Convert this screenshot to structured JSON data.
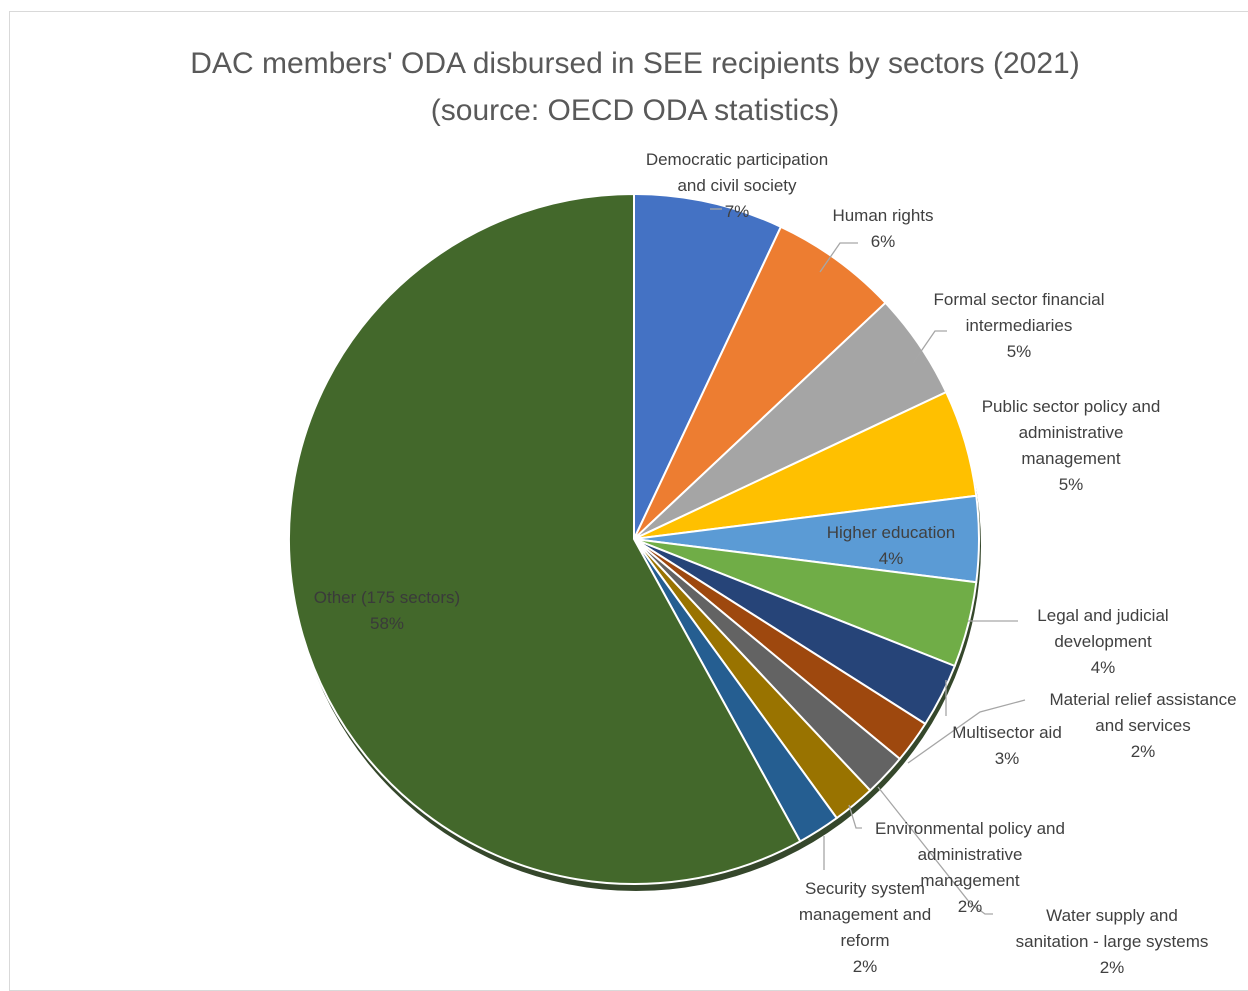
{
  "chart_data": {
    "type": "pie",
    "title": [
      "DAC members' ODA disbursed in SEE recipients by sectors (2021)",
      "(source: OECD ODA statistics)"
    ],
    "slices": [
      {
        "label": [
          "Democratic participation",
          "and civil society"
        ],
        "value": 7,
        "pct": "7%",
        "color": "#4472c4"
      },
      {
        "label": [
          "Human rights"
        ],
        "value": 6,
        "pct": "6%",
        "color": "#ed7d31"
      },
      {
        "label": [
          "Formal sector financial",
          "intermediaries"
        ],
        "value": 5,
        "pct": "5%",
        "color": "#a5a5a5"
      },
      {
        "label": [
          "Public sector policy and",
          "administrative",
          "management"
        ],
        "value": 5,
        "pct": "5%",
        "color": "#ffc000"
      },
      {
        "label": [
          "Higher education"
        ],
        "value": 4,
        "pct": "4%",
        "color": "#5b9bd5"
      },
      {
        "label": [
          "Legal and judicial",
          "development"
        ],
        "value": 4,
        "pct": "4%",
        "color": "#70ad47"
      },
      {
        "label": [
          "Multisector aid"
        ],
        "value": 3,
        "pct": "3%",
        "color": "#264478"
      },
      {
        "label": [
          "Material relief assistance",
          "and services"
        ],
        "value": 2,
        "pct": "2%",
        "color": "#9e480e"
      },
      {
        "label": [
          "Water supply and",
          "sanitation - large systems"
        ],
        "value": 2,
        "pct": "2%",
        "color": "#636363"
      },
      {
        "label": [
          "Environmental  policy and",
          "administrative",
          "management"
        ],
        "value": 2,
        "pct": "2%",
        "color": "#997300"
      },
      {
        "label": [
          "Security system",
          "management and",
          "reform"
        ],
        "value": 2,
        "pct": "2%",
        "color": "#255e91"
      },
      {
        "label": [
          "Other (175 sectors)"
        ],
        "value": 58,
        "pct": "58%",
        "color": "#43682b"
      }
    ]
  }
}
